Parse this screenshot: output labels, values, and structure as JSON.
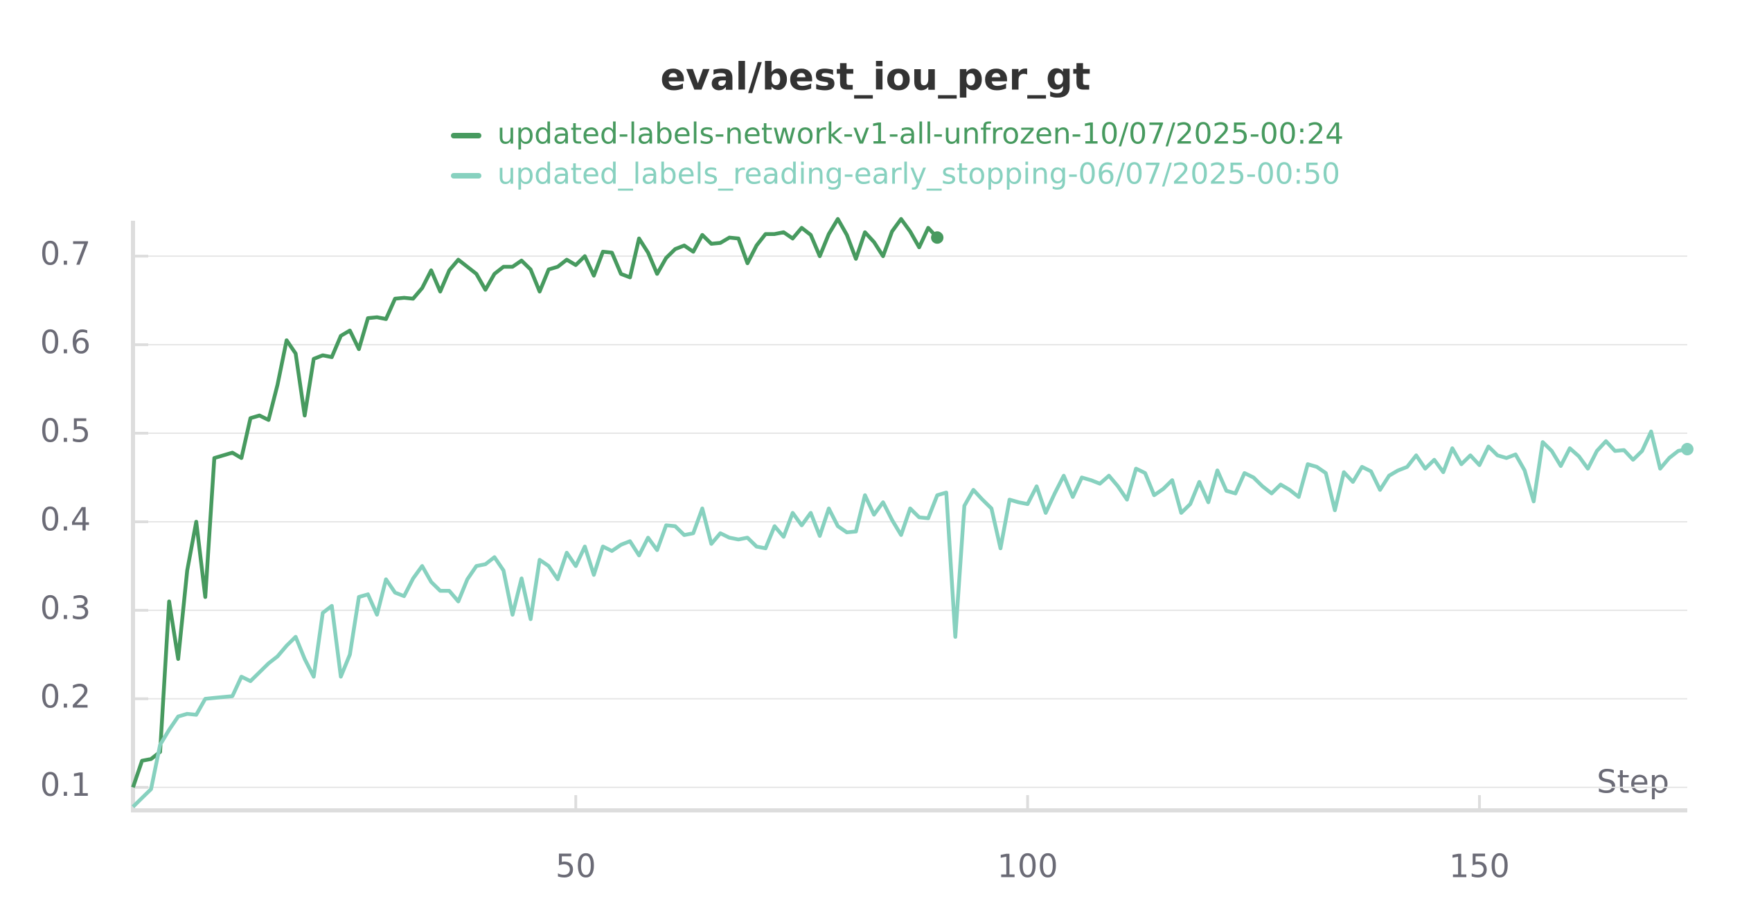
{
  "chart_data": {
    "type": "line",
    "title": "eval/best_iou_per_gt",
    "x_label": "Step",
    "x": [
      1,
      2,
      3,
      4,
      5,
      6,
      7,
      8,
      9,
      10,
      11,
      12,
      13,
      14,
      15,
      16,
      17,
      18,
      19,
      20,
      21,
      22,
      23,
      24,
      25,
      26,
      27,
      28,
      29,
      30,
      31,
      32,
      33,
      34,
      35,
      36,
      37,
      38,
      39,
      40,
      41,
      42,
      43,
      44,
      45,
      46,
      47,
      48,
      49,
      50,
      51,
      52,
      53,
      54,
      55,
      56,
      57,
      58,
      59,
      60,
      61,
      62,
      63,
      64,
      65,
      66,
      67,
      68,
      69,
      70,
      71,
      72,
      73,
      74,
      75,
      76,
      77,
      78,
      79,
      80,
      81,
      82,
      83,
      84,
      85,
      86,
      87,
      88,
      89,
      90,
      91,
      92,
      93,
      94,
      95,
      96,
      97,
      98,
      99,
      100,
      101,
      102,
      103,
      104,
      105,
      106,
      107,
      108,
      109,
      110,
      111,
      112,
      113,
      114,
      115,
      116,
      117,
      118,
      119,
      120,
      121,
      122,
      123,
      124,
      125,
      126,
      127,
      128,
      129,
      130,
      131,
      132,
      133,
      134,
      135,
      136,
      137,
      138,
      139,
      140,
      141,
      142,
      143,
      144,
      145,
      146,
      147,
      148,
      149,
      150,
      151,
      152,
      153,
      154,
      155,
      156,
      157,
      158,
      159,
      160,
      161,
      162,
      163,
      164,
      165,
      166,
      167,
      168,
      169,
      170,
      171,
      172,
      173
    ],
    "series": [
      {
        "name": "updated-labels-network-v1-all-unfrozen-10/07/2025-00:24",
        "color": "#479a5f",
        "values": [
          0.1,
          0.13,
          0.132,
          0.14,
          0.31,
          0.245,
          0.345,
          0.4,
          0.315,
          0.472,
          0.475,
          0.478,
          0.472,
          0.517,
          0.52,
          0.515,
          0.555,
          0.605,
          0.59,
          0.52,
          0.584,
          0.588,
          0.586,
          0.61,
          0.616,
          0.595,
          0.63,
          0.631,
          0.629,
          0.652,
          0.653,
          0.652,
          0.664,
          0.684,
          0.66,
          0.684,
          0.696,
          0.688,
          0.68,
          0.662,
          0.68,
          0.688,
          0.688,
          0.695,
          0.685,
          0.66,
          0.685,
          0.688,
          0.696,
          0.69,
          0.7,
          0.678,
          0.705,
          0.704,
          0.68,
          0.676,
          0.72,
          0.704,
          0.68,
          0.698,
          0.708,
          0.712,
          0.705,
          0.724,
          0.714,
          0.715,
          0.721,
          0.72,
          0.692,
          0.712,
          0.725,
          0.725,
          0.727,
          0.72,
          0.732,
          0.724,
          0.7,
          0.725,
          0.742,
          0.724,
          0.697,
          0.727,
          0.716,
          0.7,
          0.728,
          0.742,
          0.728,
          0.71,
          0.732,
          0.721,
          null,
          null,
          null,
          null,
          null,
          null,
          null,
          null,
          null,
          null,
          null,
          null,
          null,
          null,
          null,
          null,
          null,
          null,
          null,
          null,
          null,
          null,
          null,
          null,
          null,
          null,
          null,
          null,
          null,
          null,
          null,
          null,
          null,
          null,
          null,
          null,
          null,
          null,
          null,
          null,
          null,
          null,
          null,
          null,
          null,
          null,
          null,
          null,
          null,
          null,
          null,
          null,
          null,
          null,
          null,
          null,
          null,
          null,
          null,
          null,
          null,
          null,
          null,
          null,
          null,
          null,
          null,
          null,
          null,
          null,
          null,
          null,
          null,
          null,
          null,
          null,
          null,
          null,
          null,
          null,
          null,
          null,
          null
        ]
      },
      {
        "name": "updated_labels_reading-early_stopping-06/07/2025-00:50",
        "color": "#87d1bf",
        "values": [
          0.078,
          0.088,
          0.098,
          0.148,
          0.165,
          0.18,
          0.183,
          0.182,
          0.2,
          0.201,
          0.202,
          0.203,
          0.225,
          0.22,
          0.23,
          0.24,
          0.248,
          0.26,
          0.27,
          0.245,
          0.225,
          0.297,
          0.305,
          0.225,
          0.25,
          0.315,
          0.318,
          0.295,
          0.335,
          0.32,
          0.316,
          0.336,
          0.35,
          0.332,
          0.322,
          0.322,
          0.31,
          0.335,
          0.35,
          0.352,
          0.36,
          0.345,
          0.295,
          0.336,
          0.29,
          0.357,
          0.35,
          0.335,
          0.365,
          0.35,
          0.372,
          0.34,
          0.372,
          0.367,
          0.374,
          0.378,
          0.362,
          0.382,
          0.368,
          0.396,
          0.395,
          0.385,
          0.387,
          0.415,
          0.375,
          0.387,
          0.382,
          0.38,
          0.382,
          0.372,
          0.37,
          0.395,
          0.383,
          0.41,
          0.396,
          0.41,
          0.384,
          0.415,
          0.395,
          0.388,
          0.389,
          0.43,
          0.408,
          0.422,
          0.402,
          0.385,
          0.415,
          0.405,
          0.404,
          0.43,
          0.433,
          0.27,
          0.418,
          0.436,
          0.425,
          0.415,
          0.37,
          0.425,
          0.422,
          0.42,
          0.44,
          0.41,
          0.432,
          0.452,
          0.428,
          0.45,
          0.447,
          0.443,
          0.452,
          0.44,
          0.425,
          0.46,
          0.455,
          0.43,
          0.437,
          0.447,
          0.41,
          0.42,
          0.445,
          0.422,
          0.458,
          0.435,
          0.432,
          0.455,
          0.45,
          0.44,
          0.432,
          0.442,
          0.436,
          0.428,
          0.465,
          0.462,
          0.455,
          0.413,
          0.456,
          0.445,
          0.462,
          0.457,
          0.436,
          0.452,
          0.458,
          0.462,
          0.475,
          0.46,
          0.47,
          0.456,
          0.483,
          0.465,
          0.475,
          0.464,
          0.485,
          0.475,
          0.472,
          0.476,
          0.458,
          0.423,
          0.49,
          0.48,
          0.463,
          0.483,
          0.474,
          0.46,
          0.48,
          0.491,
          0.48,
          0.481,
          0.47,
          0.48,
          0.502,
          0.46,
          0.472,
          0.48,
          0.482
        ]
      }
    ],
    "xlim": [
      1,
      173
    ],
    "ylim": [
      0.074,
      0.74
    ],
    "xticks": [
      50,
      100,
      150
    ],
    "yticks": [
      0.1,
      0.2,
      0.3,
      0.4,
      0.5,
      0.6,
      0.7
    ],
    "grid": true,
    "legend": "top"
  }
}
